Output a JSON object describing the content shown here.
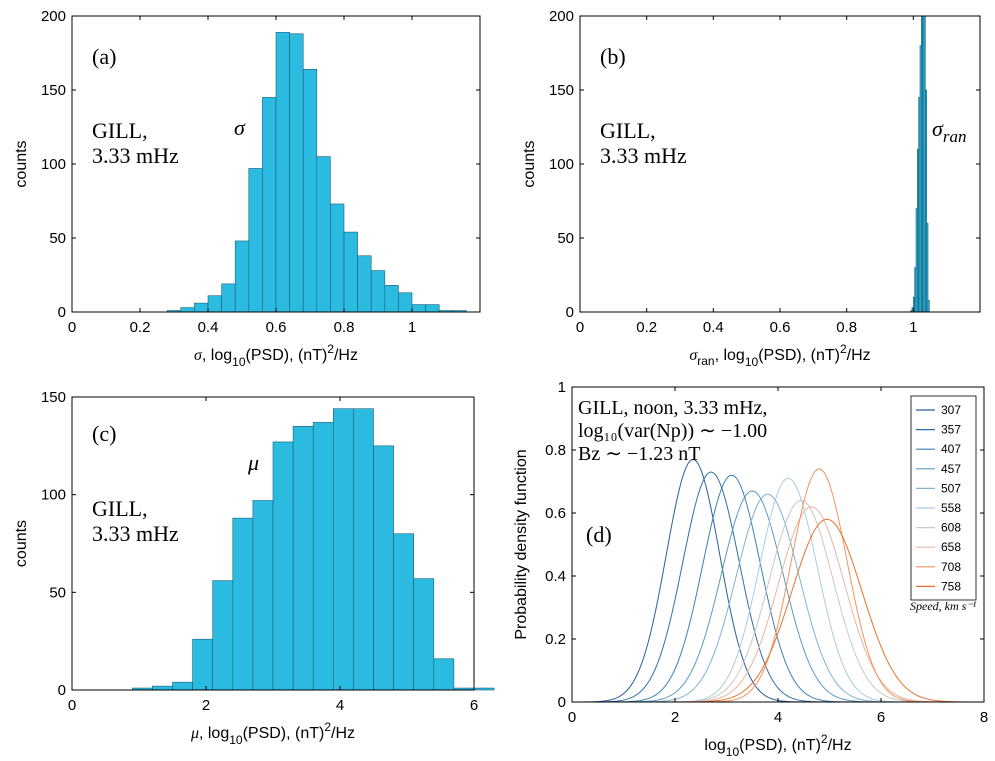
{
  "figure": {
    "background": "#ffffff",
    "bar_color": "#2bbbe0",
    "bar_edge": "#1b5f7a"
  },
  "chart_data": [
    {
      "id": "a",
      "type": "bar",
      "panel_label": "(a)",
      "station_label": [
        "GILL,",
        "3.33 mHz"
      ],
      "symbol": "σ",
      "ylabel": "counts",
      "xlabel": {
        "pre": "σ",
        "mid": ", log",
        "sub": "10",
        "post": "(PSD), (nT)",
        "sup": "2",
        "end": "/Hz"
      },
      "xlim": [
        0,
        1.2
      ],
      "ylim": [
        0,
        200
      ],
      "xticks": [
        0,
        0.2,
        0.4,
        0.6,
        0.8,
        1
      ],
      "xticklabels": [
        "0",
        "0.2",
        "0.4",
        "0.6",
        "0.8",
        "1"
      ],
      "yticks": [
        0,
        50,
        100,
        150,
        200
      ],
      "yticklabels": [
        "0",
        "50",
        "100",
        "150",
        "200"
      ],
      "bin_width": 0.04,
      "bin_start": 0.24,
      "values": [
        0,
        1,
        3,
        6,
        11,
        19,
        48,
        97,
        145,
        189,
        188,
        164,
        105,
        73,
        54,
        38,
        28,
        18,
        13,
        5,
        5,
        1,
        1
      ]
    },
    {
      "id": "b",
      "type": "bar",
      "panel_label": "(b)",
      "station_label": [
        "GILL,",
        "3.33 mHz"
      ],
      "symbol": "σ",
      "symbol_sub": "ran",
      "ylabel": "counts",
      "xlabel": {
        "pre": "σ",
        "presub": "ran",
        "mid": ", log",
        "sub": "10",
        "post": "(PSD), (nT)",
        "sup": "2",
        "end": "/Hz"
      },
      "xlim": [
        0,
        1.2
      ],
      "ylim": [
        0,
        200
      ],
      "xticks": [
        0,
        0.2,
        0.4,
        0.6,
        0.8,
        1
      ],
      "xticklabels": [
        "0",
        "0.2",
        "0.4",
        "0.6",
        "0.8",
        "1"
      ],
      "yticks": [
        0,
        50,
        100,
        150,
        200
      ],
      "yticklabels": [
        "0",
        "50",
        "100",
        "150",
        "200"
      ],
      "bin_width": 0.004,
      "bin_start": 0.992,
      "values": [
        1,
        3,
        10,
        30,
        70,
        110,
        145,
        180,
        200,
        200,
        200,
        150,
        60,
        8
      ]
    },
    {
      "id": "c",
      "type": "bar",
      "panel_label": "(c)",
      "station_label": [
        "GILL,",
        "3.33 mHz"
      ],
      "symbol": "μ",
      "ylabel": "counts",
      "xlabel": {
        "pre": "μ",
        "mid": ", log",
        "sub": "10",
        "post": "(PSD), (nT)",
        "sup": "2",
        "end": "/Hz"
      },
      "xlim": [
        0,
        6
      ],
      "ylim": [
        0,
        150
      ],
      "xticks": [
        0,
        2,
        4,
        6
      ],
      "xticklabels": [
        "0",
        "2",
        "4",
        "6"
      ],
      "yticks": [
        0,
        50,
        100,
        150
      ],
      "yticklabels": [
        "0",
        "50",
        "100",
        "150"
      ],
      "bin_width": 0.3,
      "bin_start": 0.9,
      "values": [
        1,
        2,
        4,
        26,
        56,
        88,
        97,
        127,
        135,
        137,
        144,
        144,
        125,
        80,
        57,
        16,
        1,
        1
      ]
    },
    {
      "id": "d",
      "type": "line",
      "panel_label": "(d)",
      "annotation": [
        "GILL, noon, 3.33 mHz,",
        "log₁₀(var(Np)) ∼ −1.00",
        "Bz ∼ −1.23 nT"
      ],
      "ylabel": "Probability density function",
      "xlabel": {
        "pre": "",
        "mid": "log",
        "sub": "10",
        "post": "(PSD), (nT)",
        "sup": "2",
        "end": "/Hz"
      },
      "xlim": [
        0,
        8
      ],
      "ylim": [
        0,
        1
      ],
      "xticks": [
        0,
        2,
        4,
        6,
        8
      ],
      "xticklabels": [
        "0",
        "2",
        "4",
        "6",
        "8"
      ],
      "yticks": [
        0,
        0.2,
        0.4,
        0.6,
        0.8,
        1
      ],
      "yticklabels": [
        "0",
        "0.2",
        "0.4",
        "0.6",
        "0.8",
        "1"
      ],
      "legend_title": "Speed, km s⁻¹",
      "legend_position": "top-right",
      "series": [
        {
          "name": "307",
          "color": "#2a5d9c",
          "mu": 2.35,
          "peak": 0.77,
          "sigma": 0.52
        },
        {
          "name": "357",
          "color": "#2f6eaa",
          "mu": 2.7,
          "peak": 0.73,
          "sigma": 0.55
        },
        {
          "name": "407",
          "color": "#3b82b6",
          "mu": 3.1,
          "peak": 0.72,
          "sigma": 0.56
        },
        {
          "name": "457",
          "color": "#5a98c4",
          "mu": 3.5,
          "peak": 0.67,
          "sigma": 0.6
        },
        {
          "name": "507",
          "color": "#82b2d3",
          "mu": 3.8,
          "peak": 0.66,
          "sigma": 0.61
        },
        {
          "name": "558",
          "color": "#a8cde0",
          "mu": 4.2,
          "peak": 0.71,
          "sigma": 0.56
        },
        {
          "name": "608",
          "color": "#ccc6c5",
          "mu": 4.45,
          "peak": 0.64,
          "sigma": 0.62
        },
        {
          "name": "658",
          "color": "#eab5a0",
          "mu": 4.65,
          "peak": 0.62,
          "sigma": 0.64
        },
        {
          "name": "708",
          "color": "#f2925f",
          "mu": 4.8,
          "peak": 0.74,
          "sigma": 0.54
        },
        {
          "name": "758",
          "color": "#e9722e",
          "mu": 4.95,
          "peak": 0.58,
          "sigma": 0.68
        }
      ]
    }
  ]
}
